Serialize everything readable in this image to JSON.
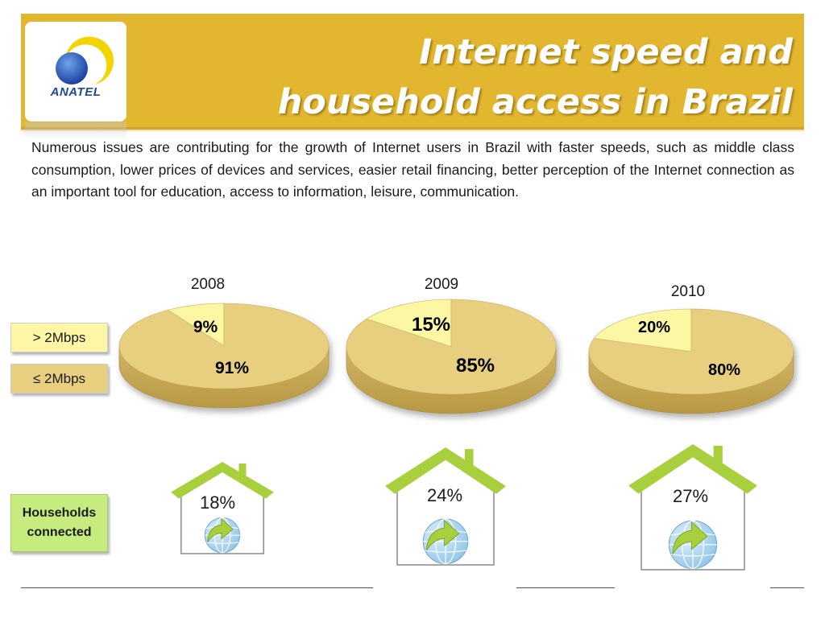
{
  "header": {
    "logo_text": "ANATEL",
    "title_line1": "Internet speed and",
    "title_line2": "household access in Brazil"
  },
  "intro_text": "Numerous issues are contributing for the growth of Internet users in Brazil with faster speeds, such as middle class consumption, lower prices of devices and services, easier retail financing, better perception of the Internet connection as an important tool for education, access to information, leisure, communication.",
  "legend": {
    "above": "> 2Mbps",
    "below": "≤ 2Mbps",
    "households": "Households connected"
  },
  "colors": {
    "header": "#e2b62f",
    "slice_above": "#fbf7a2",
    "slice_below": "#e8cf80",
    "house": "#a8cf3c",
    "globe": "#8dc3e8"
  },
  "chart_data": [
    {
      "type": "pie",
      "title": "2008",
      "categories": [
        "> 2Mbps",
        "≤ 2Mbps"
      ],
      "values": [
        9,
        91
      ],
      "labels": [
        "9%",
        "91%"
      ],
      "households_connected": "18%"
    },
    {
      "type": "pie",
      "title": "2009",
      "categories": [
        "> 2Mbps",
        "≤ 2Mbps"
      ],
      "values": [
        15,
        85
      ],
      "labels": [
        "15%",
        "85%"
      ],
      "households_connected": "24%"
    },
    {
      "type": "pie",
      "title": "2010",
      "categories": [
        "> 2Mbps",
        "≤ 2Mbps"
      ],
      "values": [
        20,
        80
      ],
      "labels": [
        "20%",
        "80%"
      ],
      "households_connected": "27%"
    }
  ]
}
